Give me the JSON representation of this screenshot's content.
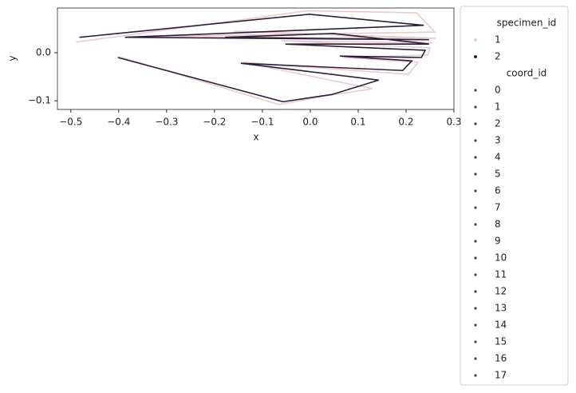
{
  "chart_data": {
    "type": "line",
    "x_label": "x",
    "y_label": "y",
    "xlim": [
      -0.528,
      0.3
    ],
    "ylim": [
      -0.118,
      0.093
    ],
    "xticks": [
      -0.5,
      -0.4,
      -0.3,
      -0.2,
      -0.1,
      0.0,
      0.1,
      0.2,
      0.3
    ],
    "xtick_labels": [
      "−0.5",
      "−0.4",
      "−0.3",
      "−0.2",
      "−0.1",
      "0.0",
      "0.1",
      "0.2",
      "0.3"
    ],
    "yticks": [
      -0.1,
      0.0
    ],
    "ytick_labels": [
      "−0.1",
      "0.0"
    ],
    "legend_title": "specimen_id",
    "series": [
      {
        "name": "1",
        "color": "#ebcacb",
        "x": [
          -0.49,
          -0.007,
          0.222,
          0.26,
          -0.382,
          0.262,
          -0.16,
          0.04,
          0.255,
          -0.06,
          0.25,
          0.245,
          0.07,
          0.225,
          0.205,
          -0.14,
          0.13,
          0.03,
          -0.065,
          -0.4
        ],
        "y": [
          0.022,
          0.087,
          0.083,
          0.043,
          0.033,
          0.03,
          0.045,
          0.038,
          0.02,
          0.025,
          0.01,
          -0.005,
          -0.01,
          -0.02,
          -0.045,
          -0.02,
          -0.075,
          -0.09,
          -0.108,
          -0.008
        ]
      },
      {
        "name": "2",
        "color": "#2d1e3e",
        "x": [
          -0.482,
          -0.002,
          0.237,
          -0.387,
          0.248,
          -0.178,
          0.048,
          0.248,
          -0.052,
          0.24,
          0.232,
          0.062,
          0.212,
          0.193,
          -0.145,
          0.143,
          0.045,
          -0.057,
          -0.402
        ],
        "y": [
          0.032,
          0.08,
          0.057,
          0.032,
          0.027,
          0.032,
          0.04,
          0.018,
          0.018,
          0.005,
          -0.01,
          -0.007,
          -0.017,
          -0.037,
          -0.022,
          -0.057,
          -0.087,
          -0.102,
          -0.01
        ]
      }
    ],
    "marker_legend": {
      "title": "coord_id",
      "labels": [
        "0",
        "1",
        "2",
        "3",
        "4",
        "5",
        "6",
        "7",
        "8",
        "9",
        "10",
        "11",
        "12",
        "13",
        "14",
        "15",
        "16",
        "17"
      ]
    }
  }
}
